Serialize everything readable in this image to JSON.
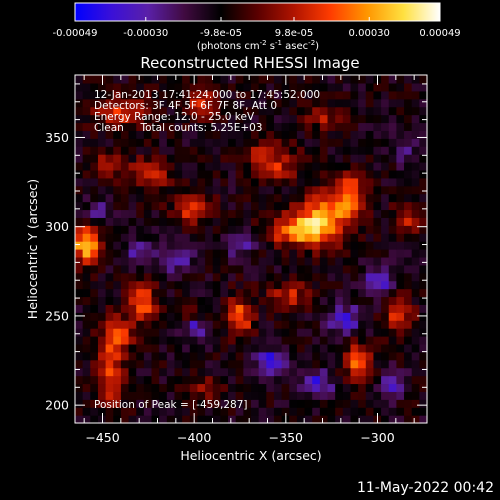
{
  "colorbar": {
    "tick_labels": [
      "-0.00049",
      "-0.00030",
      "-9.8e-05",
      "9.8e-05",
      "0.00030",
      "0.00049"
    ],
    "tick_values": [
      -0.00049,
      -0.0003,
      -9.8e-05,
      9.8e-05,
      0.0003,
      0.00049
    ],
    "range": [
      -0.00049,
      0.00049
    ],
    "units_prefix": "(photons cm",
    "units_exp1": "-2",
    "units_mid": " s",
    "units_exp2": "-1",
    "units_mid2": " asec",
    "units_exp3": "-2",
    "units_suffix": ")",
    "colormap": [
      "#0000ff",
      "#3a10d8",
      "#5a20a8",
      "#400a40",
      "#000000",
      "#5a0000",
      "#b01400",
      "#ff3c00",
      "#ff9600",
      "#ffe040",
      "#ffffff"
    ]
  },
  "chart_data": {
    "type": "heatmap",
    "title": "Reconstructed RHESSI Image",
    "xlabel": "Heliocentric X (arcsec)",
    "ylabel": "Heliocentric Y (arcsec)",
    "xlim": [
      -465,
      -273
    ],
    "ylim": [
      190,
      385
    ],
    "x_ticks": [
      -450,
      -400,
      -350,
      -300
    ],
    "x_tick_labels": [
      "−450",
      "−400",
      "−350",
      "−300"
    ],
    "y_ticks": [
      200,
      250,
      300,
      350
    ],
    "y_tick_labels": [
      "200",
      "250",
      "300",
      "350"
    ],
    "annotations": [
      "12-Jan-2013 17:41:24.000 to 17:45:52.000",
      "Detectors: 3F 4F 5F 6F 7F 8F, Att 0",
      "Energy Range: 12.0 - 25.0 keV",
      "Clean     Total counts: 5.25E+03"
    ],
    "peak_label": "Position of Peak = [-459,287]",
    "peak": [
      -459,
      287
    ],
    "grid_shape": [
      46,
      44
    ],
    "hot_spots": [
      {
        "x": -459,
        "y": 290,
        "amp": 1.0,
        "sx": 5,
        "sy": 7
      },
      {
        "x": -330,
        "y": 305,
        "amp": 0.8,
        "sx": 10,
        "sy": 10
      },
      {
        "x": -315,
        "y": 318,
        "amp": 0.7,
        "sx": 6,
        "sy": 8
      },
      {
        "x": -345,
        "y": 298,
        "amp": 0.7,
        "sx": 10,
        "sy": 6
      },
      {
        "x": -360,
        "y": 340,
        "amp": 0.45,
        "sx": 10,
        "sy": 6
      },
      {
        "x": -400,
        "y": 310,
        "amp": 0.55,
        "sx": 8,
        "sy": 5
      },
      {
        "x": -425,
        "y": 330,
        "amp": 0.5,
        "sx": 8,
        "sy": 6
      },
      {
        "x": -440,
        "y": 365,
        "amp": 0.5,
        "sx": 10,
        "sy": 7
      },
      {
        "x": -395,
        "y": 368,
        "amp": 0.45,
        "sx": 7,
        "sy": 6
      },
      {
        "x": -446,
        "y": 220,
        "amp": 0.55,
        "sx": 6,
        "sy": 16
      },
      {
        "x": -428,
        "y": 258,
        "amp": 0.7,
        "sx": 5,
        "sy": 7
      },
      {
        "x": -440,
        "y": 240,
        "amp": 0.5,
        "sx": 5,
        "sy": 6
      },
      {
        "x": -402,
        "y": 250,
        "amp": 0.5,
        "sx": 6,
        "sy": 5
      },
      {
        "x": -375,
        "y": 250,
        "amp": 0.65,
        "sx": 5,
        "sy": 8
      },
      {
        "x": -310,
        "y": 225,
        "amp": 0.75,
        "sx": 5,
        "sy": 7
      },
      {
        "x": -288,
        "y": 250,
        "amp": 0.55,
        "sx": 5,
        "sy": 8
      },
      {
        "x": -348,
        "y": 262,
        "amp": 0.45,
        "sx": 8,
        "sy": 5
      },
      {
        "x": -355,
        "y": 330,
        "amp": 0.4,
        "sx": 6,
        "sy": 4
      },
      {
        "x": -284,
        "y": 305,
        "amp": 0.5,
        "sx": 5,
        "sy": 6
      },
      {
        "x": -330,
        "y": 362,
        "amp": 0.35,
        "sx": 7,
        "sy": 5
      },
      {
        "x": -448,
        "y": 335,
        "amp": 0.45,
        "sx": 5,
        "sy": 5
      },
      {
        "x": -395,
        "y": 210,
        "amp": 0.35,
        "sx": 6,
        "sy": 5
      }
    ],
    "cold_spots": [
      {
        "x": -400,
        "y": 245,
        "amp": -0.7,
        "sx": 5,
        "sy": 5
      },
      {
        "x": -358,
        "y": 225,
        "amp": -0.6,
        "sx": 6,
        "sy": 5
      },
      {
        "x": -333,
        "y": 212,
        "amp": -0.55,
        "sx": 6,
        "sy": 5
      },
      {
        "x": -318,
        "y": 248,
        "amp": -0.55,
        "sx": 6,
        "sy": 6
      },
      {
        "x": -300,
        "y": 270,
        "amp": -0.5,
        "sx": 6,
        "sy": 6
      },
      {
        "x": -410,
        "y": 282,
        "amp": -0.4,
        "sx": 7,
        "sy": 5
      },
      {
        "x": -292,
        "y": 212,
        "amp": -0.5,
        "sx": 5,
        "sy": 5
      },
      {
        "x": -430,
        "y": 285,
        "amp": -0.35,
        "sx": 6,
        "sy": 5
      },
      {
        "x": -375,
        "y": 290,
        "amp": -0.35,
        "sx": 6,
        "sy": 5
      },
      {
        "x": -285,
        "y": 345,
        "amp": -0.3,
        "sx": 6,
        "sy": 6
      },
      {
        "x": -452,
        "y": 308,
        "amp": -0.3,
        "sx": 5,
        "sy": 5
      }
    ]
  },
  "footer": {
    "timestamp": "11-May-2022 00:42"
  }
}
